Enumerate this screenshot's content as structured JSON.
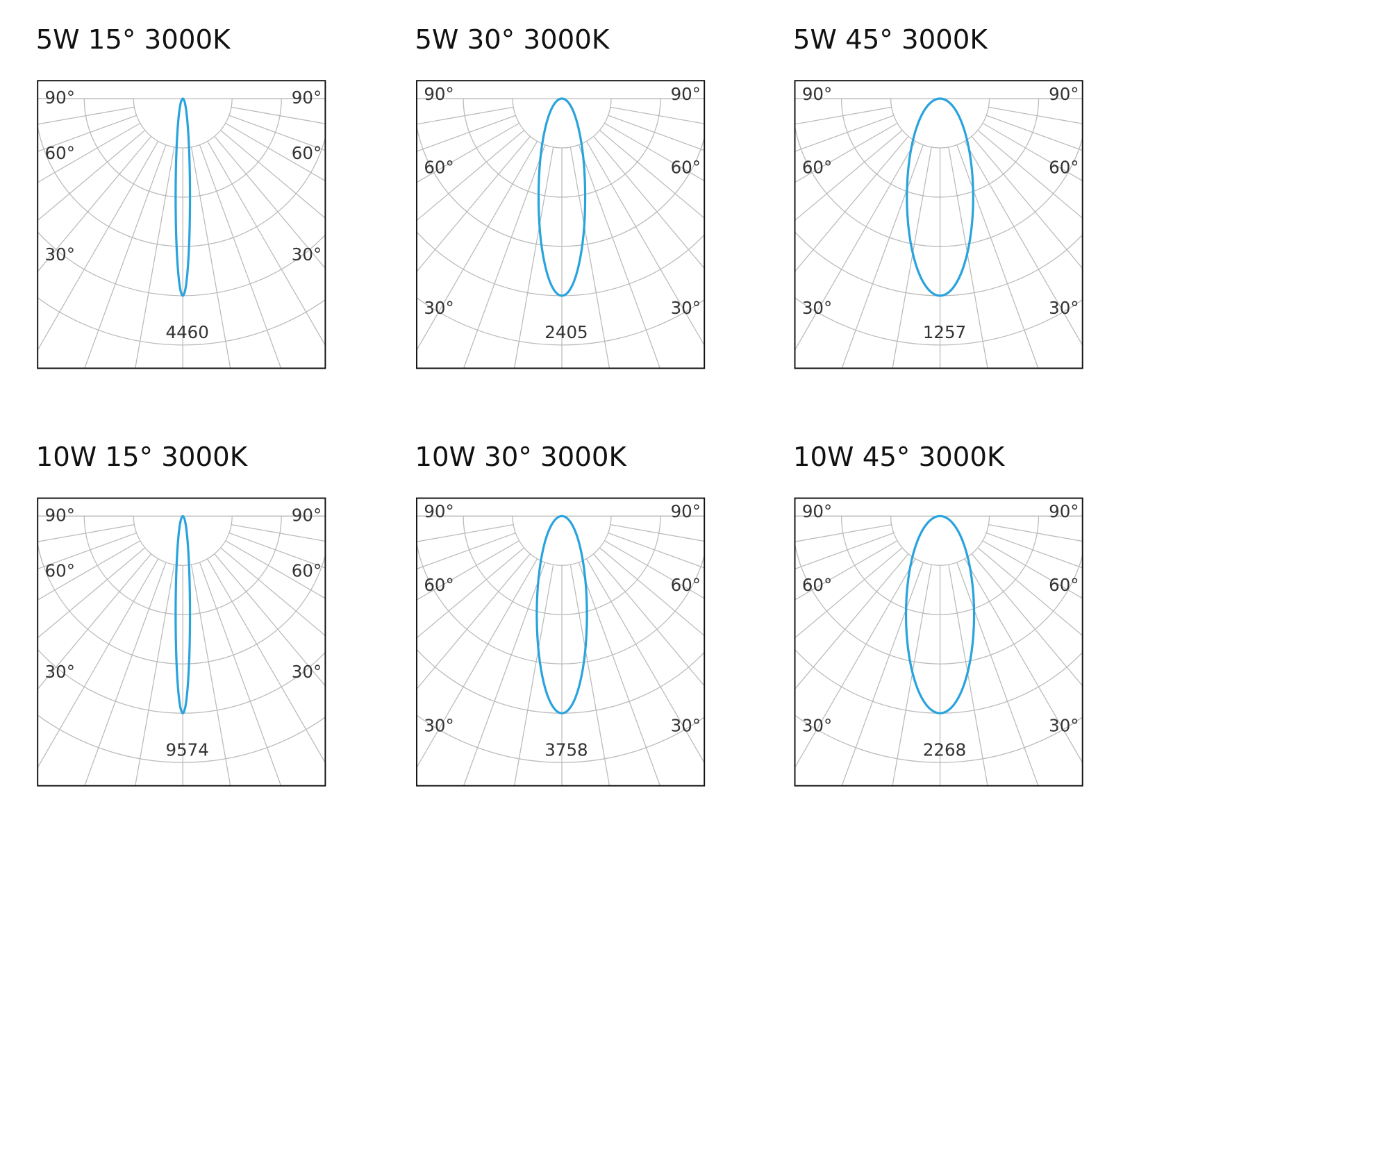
{
  "panels": [
    {
      "title": "5W 15°  3000K",
      "peak": 4460,
      "left_labels": [
        "90°",
        "60°",
        "30°"
      ],
      "right_labels": [
        "90°",
        "60°",
        "30°"
      ]
    },
    {
      "title": "5W 30°  3000K",
      "peak": 2405,
      "left_labels": [
        "90°",
        "60°",
        "30°"
      ],
      "right_labels": [
        "90°",
        "60°",
        "30°"
      ]
    },
    {
      "title": "5W 45°  3000K",
      "peak": 1257,
      "left_labels": [
        "90°",
        "60°",
        "30°"
      ],
      "right_labels": [
        "90°",
        "60°",
        "30°"
      ]
    },
    {
      "title": "10W 15°  3000K",
      "peak": 9574,
      "left_labels": [
        "90°",
        "60°",
        "30°"
      ],
      "right_labels": [
        "90°",
        "60°",
        "30°"
      ]
    },
    {
      "title": "10W 30°  3000K",
      "peak": 3758,
      "left_labels": [
        "90°",
        "60°",
        "30°"
      ],
      "right_labels": [
        "90°",
        "60°",
        "30°"
      ]
    },
    {
      "title": "10W 45°  3000K",
      "peak": 2268,
      "left_labels": [
        "90°",
        "60°",
        "30°"
      ],
      "right_labels": [
        "90°",
        "60°",
        "30°"
      ]
    }
  ]
}
